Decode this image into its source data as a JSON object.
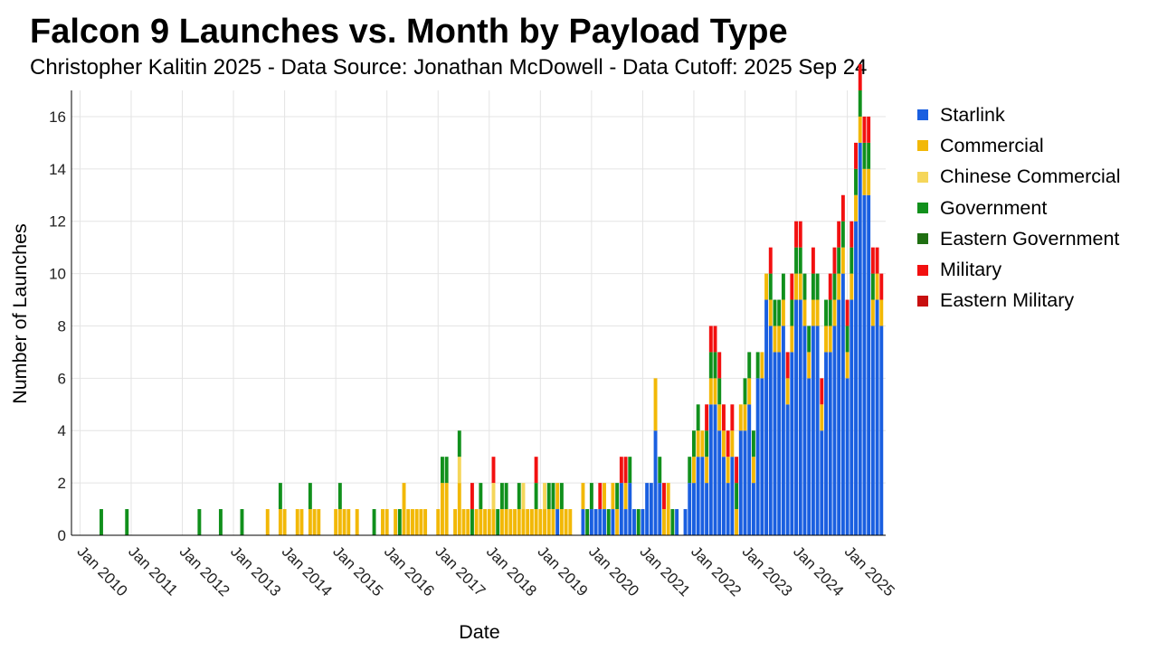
{
  "title": "Falcon 9 Launches vs. Month by Payload Type",
  "subtitle": "Christopher Kalitin 2025 - Data Source: Jonathan McDowell - Data Cutoff: 2025 Sep 24",
  "chart_data": {
    "type": "bar",
    "stacked": true,
    "xlabel": "Date",
    "ylabel": "Number of Launches",
    "ylim": [
      0,
      17
    ],
    "yticks": [
      0,
      2,
      4,
      6,
      8,
      10,
      12,
      14,
      16
    ],
    "xlim": [
      "2009-11",
      "2025-10"
    ],
    "xticks": [
      "Jan 2010",
      "Jan 2011",
      "Jan 2012",
      "Jan 2013",
      "Jan 2014",
      "Jan 2015",
      "Jan 2016",
      "Jan 2017",
      "Jan 2018",
      "Jan 2019",
      "Jan 2020",
      "Jan 2021",
      "Jan 2022",
      "Jan 2023",
      "Jan 2024",
      "Jan 2025"
    ],
    "grid": true,
    "legend_position": "right",
    "series": [
      {
        "name": "Starlink",
        "color": "#1a5fe0",
        "x": [
          "2019-05",
          "2019-11",
          "2020-01",
          "2020-02",
          "2020-03",
          "2020-04",
          "2020-06",
          "2020-08",
          "2020-09",
          "2020-10",
          "2020-11",
          "2021-01",
          "2021-02",
          "2021-03",
          "2021-04",
          "2021-05",
          "2021-09",
          "2021-11",
          "2021-12",
          "2022-01",
          "2022-02",
          "2022-03",
          "2022-04",
          "2022-05",
          "2022-06",
          "2022-07",
          "2022-08",
          "2022-09",
          "2022-10",
          "2022-12",
          "2023-01",
          "2023-02",
          "2023-03",
          "2023-04",
          "2023-05",
          "2023-06",
          "2023-07",
          "2023-08",
          "2023-09",
          "2023-10",
          "2023-11",
          "2023-12",
          "2024-01",
          "2024-02",
          "2024-03",
          "2024-04",
          "2024-05",
          "2024-06",
          "2024-07",
          "2024-08",
          "2024-09",
          "2024-10",
          "2024-11",
          "2024-12",
          "2025-01",
          "2025-02",
          "2025-03",
          "2025-04",
          "2025-05",
          "2025-06",
          "2025-07",
          "2025-08",
          "2025-09"
        ],
        "values": [
          1,
          1,
          1,
          1,
          1,
          1,
          1,
          2,
          1,
          2,
          1,
          1,
          2,
          2,
          4,
          2,
          1,
          1,
          2,
          2,
          3,
          3,
          2,
          5,
          5,
          4,
          3,
          2,
          3,
          4,
          4,
          5,
          2,
          6,
          6,
          9,
          8,
          7,
          7,
          8,
          5,
          7,
          9,
          9,
          8,
          6,
          8,
          8,
          4,
          7,
          7,
          8,
          9,
          10,
          6,
          9,
          12,
          15,
          13,
          13,
          8,
          9,
          8
        ]
      },
      {
        "name": "Commercial",
        "color": "#f2b807",
        "x": [
          "2013-09",
          "2013-12",
          "2014-01",
          "2014-04",
          "2014-05",
          "2014-07",
          "2014-08",
          "2014-09",
          "2015-01",
          "2015-02",
          "2015-03",
          "2015-04",
          "2015-06",
          "2015-12",
          "2016-01",
          "2016-03",
          "2016-05",
          "2016-06",
          "2016-07",
          "2016-08",
          "2016-09",
          "2016-10",
          "2017-01",
          "2017-02",
          "2017-03",
          "2017-05",
          "2017-06",
          "2017-07",
          "2017-08",
          "2017-10",
          "2017-11",
          "2017-12",
          "2018-01",
          "2018-02",
          "2018-04",
          "2018-05",
          "2018-06",
          "2018-07",
          "2018-08",
          "2018-09",
          "2018-10",
          "2018-11",
          "2018-12",
          "2019-01",
          "2019-02",
          "2019-03",
          "2019-04",
          "2019-05",
          "2019-06",
          "2019-07",
          "2019-08",
          "2019-11",
          "2020-04",
          "2020-06",
          "2020-07",
          "2020-09",
          "2021-04",
          "2021-06",
          "2021-07",
          "2022-01",
          "2022-02",
          "2022-03",
          "2022-04",
          "2022-05",
          "2022-06",
          "2022-07",
          "2022-08",
          "2022-09",
          "2022-10",
          "2022-11",
          "2022-12",
          "2023-01",
          "2023-02",
          "2023-03",
          "2023-05",
          "2023-06",
          "2023-07",
          "2023-08",
          "2023-09",
          "2023-10",
          "2023-11",
          "2023-12",
          "2024-01",
          "2024-02",
          "2024-03",
          "2024-04",
          "2024-05",
          "2024-06",
          "2024-07",
          "2024-08",
          "2024-09",
          "2024-10",
          "2024-11",
          "2024-12",
          "2025-01",
          "2025-02",
          "2025-03",
          "2025-04",
          "2025-05",
          "2025-06",
          "2025-07",
          "2025-08",
          "2025-09"
        ],
        "values": [
          1,
          1,
          1,
          1,
          1,
          1,
          1,
          1,
          1,
          1,
          1,
          1,
          1,
          1,
          1,
          1,
          2,
          1,
          1,
          1,
          1,
          1,
          1,
          2,
          2,
          1,
          2,
          1,
          1,
          1,
          1,
          1,
          1,
          1,
          1,
          1,
          1,
          1,
          1,
          1,
          1,
          1,
          1,
          1,
          1,
          1,
          1,
          1,
          1,
          1,
          1,
          1,
          1,
          1,
          1,
          1,
          2,
          1,
          2,
          1,
          1,
          1,
          1,
          1,
          1,
          1,
          1,
          1,
          1,
          1,
          1,
          1,
          1,
          1,
          1,
          1,
          1,
          1,
          1,
          1,
          1,
          1,
          1,
          1,
          1,
          1,
          1,
          1,
          1,
          1,
          1,
          1,
          1,
          1,
          1,
          1,
          1,
          1,
          1,
          1,
          1,
          1,
          1
        ]
      },
      {
        "name": "Chinese Commercial",
        "color": "#f5d65a",
        "x": [
          "2017-06",
          "2018-02",
          "2018-09",
          "2019-02"
        ],
        "values": [
          1,
          1,
          1,
          1
        ]
      },
      {
        "name": "Government",
        "color": "#11901c",
        "x": [
          "2010-06",
          "2010-12",
          "2012-05",
          "2012-10",
          "2013-03",
          "2013-12",
          "2014-07",
          "2015-02",
          "2015-10",
          "2016-04",
          "2017-02",
          "2017-03",
          "2017-06",
          "2017-09",
          "2017-11",
          "2018-03",
          "2018-04",
          "2018-05",
          "2018-08",
          "2018-12",
          "2019-03",
          "2019-04",
          "2019-06",
          "2019-12",
          "2020-01",
          "2020-05",
          "2020-07",
          "2020-10",
          "2020-12",
          "2021-05",
          "2021-08",
          "2021-12",
          "2022-01",
          "2022-02",
          "2022-04",
          "2022-05",
          "2022-06",
          "2022-07",
          "2022-11",
          "2023-01",
          "2023-02",
          "2023-03",
          "2023-04",
          "2023-07",
          "2023-08",
          "2023-09",
          "2023-10",
          "2023-12",
          "2024-01",
          "2024-02",
          "2024-03",
          "2024-04",
          "2024-05",
          "2024-06",
          "2024-08",
          "2024-09",
          "2024-10",
          "2024-11",
          "2024-12",
          "2025-01",
          "2025-02",
          "2025-03",
          "2025-04",
          "2025-05",
          "2025-06",
          "2025-07"
        ],
        "values": [
          1,
          1,
          1,
          1,
          1,
          1,
          1,
          1,
          1,
          1,
          1,
          1,
          1,
          1,
          1,
          1,
          1,
          1,
          1,
          1,
          1,
          1,
          1,
          1,
          1,
          1,
          1,
          1,
          1,
          1,
          1,
          1,
          1,
          1,
          1,
          1,
          1,
          1,
          1,
          1,
          1,
          1,
          1,
          1,
          1,
          1,
          1,
          1,
          1,
          1,
          1,
          1,
          1,
          1,
          1,
          1,
          1,
          1,
          1,
          1,
          1,
          1,
          1,
          1,
          1,
          1
        ]
      },
      {
        "name": "Eastern Government",
        "color": "#1f6f12",
        "x": [],
        "values": []
      },
      {
        "name": "Military",
        "color": "#f21010",
        "x": [
          "2017-09",
          "2018-02",
          "2018-12",
          "2020-03",
          "2020-08",
          "2020-09",
          "2021-06",
          "2022-04",
          "2022-05",
          "2022-06",
          "2022-07",
          "2022-08",
          "2022-09",
          "2022-10",
          "2022-11",
          "2023-07",
          "2023-11",
          "2023-12",
          "2024-01",
          "2024-02",
          "2024-05",
          "2024-07",
          "2024-09",
          "2024-10",
          "2024-11",
          "2024-12",
          "2025-01",
          "2025-02",
          "2025-03",
          "2025-04",
          "2025-05",
          "2025-06",
          "2025-07",
          "2025-08",
          "2025-09"
        ],
        "values": [
          1,
          1,
          1,
          1,
          1,
          1,
          1,
          1,
          1,
          1,
          1,
          1,
          1,
          1,
          1,
          1,
          1,
          1,
          1,
          1,
          1,
          1,
          1,
          1,
          1,
          1,
          1,
          1,
          1,
          1,
          1,
          1,
          1,
          1,
          1
        ]
      },
      {
        "name": "Eastern Military",
        "color": "#c80f0f",
        "x": [],
        "values": []
      }
    ]
  }
}
